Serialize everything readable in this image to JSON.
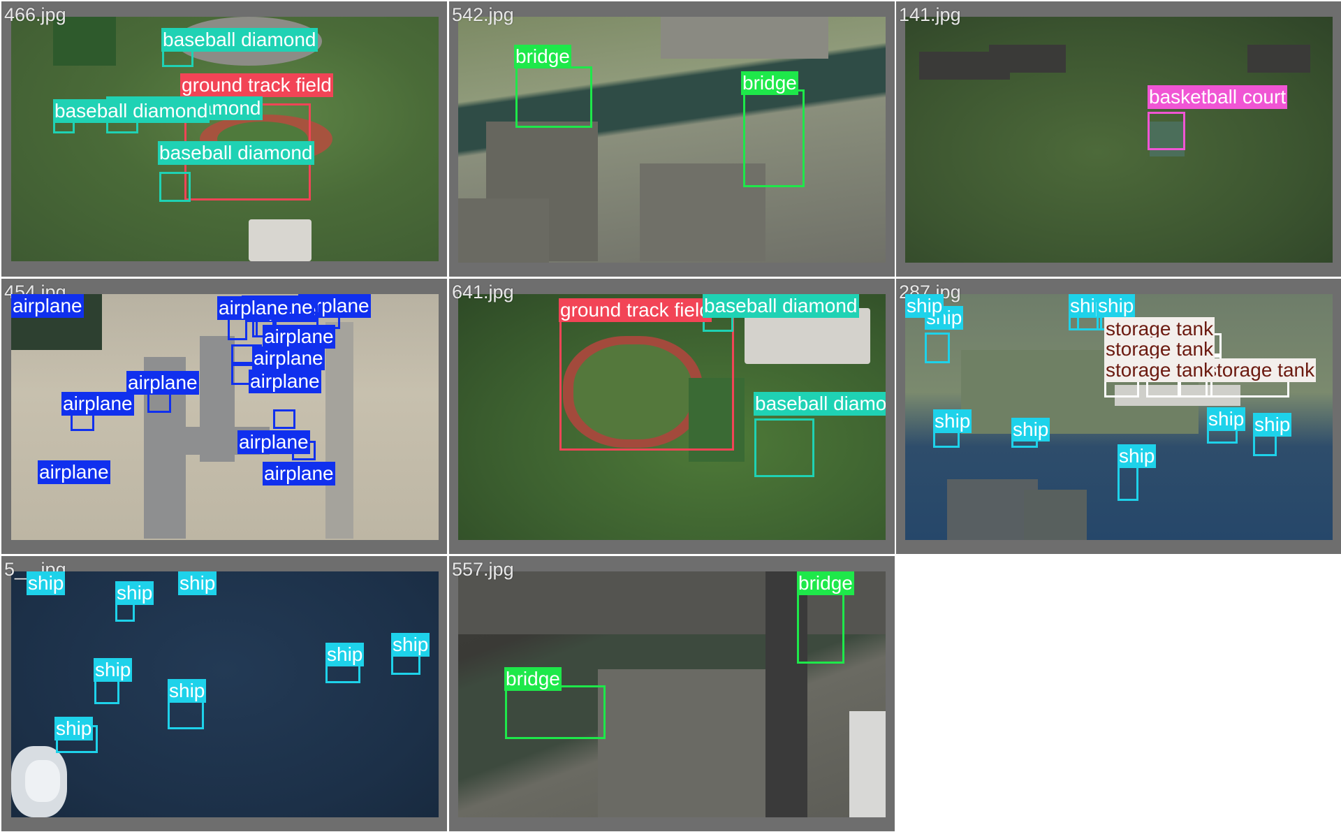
{
  "colors": {
    "baseball_diamond": "#1fd2b4",
    "ground_track_field": "#f24456",
    "bridge": "#1ee84a",
    "basketball_court": "#f055d4",
    "airplane": "#1030ee",
    "ship": "#1ed2ea",
    "storage_tank": "#f3efec",
    "storage_tank_text": "#6b1a10"
  },
  "tiles": [
    {
      "file": "466.jpg",
      "labels": [
        {
          "text": "baseball diamond",
          "cls": "baseball_diamond"
        },
        {
          "text": "ground track field",
          "cls": "ground_track_field"
        },
        {
          "text": "baseball diamond",
          "cls": "baseball_diamond"
        },
        {
          "text": "baseball diamond",
          "cls": "baseball_diamond"
        },
        {
          "text": "baseball diamond",
          "cls": "baseball_diamond"
        }
      ]
    },
    {
      "file": "542.jpg",
      "labels": [
        {
          "text": "bridge",
          "cls": "bridge"
        },
        {
          "text": "bridge",
          "cls": "bridge"
        }
      ]
    },
    {
      "file": "141.jpg",
      "labels": [
        {
          "text": "basketball court",
          "cls": "basketball_court"
        }
      ]
    },
    {
      "file": "454.jpg",
      "labels": [
        {
          "text": "airplane",
          "cls": "airplane"
        },
        {
          "text": "airplane",
          "cls": "airplane"
        },
        {
          "text": "airplane",
          "cls": "airplane"
        },
        {
          "text": "airplane",
          "cls": "airplane"
        },
        {
          "text": "airplane",
          "cls": "airplane"
        },
        {
          "text": "airplane",
          "cls": "airplane"
        },
        {
          "text": "airplane",
          "cls": "airplane"
        },
        {
          "text": "airplane",
          "cls": "airplane"
        },
        {
          "text": "airplane",
          "cls": "airplane"
        },
        {
          "text": "airplane",
          "cls": "airplane"
        },
        {
          "text": "airplane",
          "cls": "airplane"
        },
        {
          "text": "airplane",
          "cls": "airplane"
        },
        {
          "text": "airplane",
          "cls": "airplane"
        }
      ]
    },
    {
      "file": "641.jpg",
      "labels": [
        {
          "text": "ground track field",
          "cls": "ground_track_field"
        },
        {
          "text": "baseball diamond",
          "cls": "baseball_diamond"
        },
        {
          "text": "baseball diamond",
          "cls": "baseball_diamond"
        }
      ]
    },
    {
      "file": "287.jpg",
      "labels": [
        {
          "text": "ship",
          "cls": "ship"
        },
        {
          "text": "ship",
          "cls": "ship"
        },
        {
          "text": "ship",
          "cls": "ship"
        },
        {
          "text": "ship",
          "cls": "ship"
        },
        {
          "text": "storage tank",
          "cls": "storage_tank"
        },
        {
          "text": "storage tank",
          "cls": "storage_tank"
        },
        {
          "text": "storage tank",
          "cls": "storage_tank"
        },
        {
          "text": "storage tank",
          "cls": "storage_tank"
        },
        {
          "text": "storage tank",
          "cls": "storage_tank"
        },
        {
          "text": "storage tank",
          "cls": "storage_tank"
        },
        {
          "text": "storage tank",
          "cls": "storage_tank"
        },
        {
          "text": "ship",
          "cls": "ship"
        },
        {
          "text": "ship",
          "cls": "ship"
        },
        {
          "text": "ship",
          "cls": "ship"
        },
        {
          "text": "ship",
          "cls": "ship"
        },
        {
          "text": "ship",
          "cls": "ship"
        }
      ]
    },
    {
      "file": "5__.jpg",
      "labels": [
        {
          "text": "ship",
          "cls": "ship"
        },
        {
          "text": "ship",
          "cls": "ship"
        },
        {
          "text": "ship",
          "cls": "ship"
        },
        {
          "text": "ship",
          "cls": "ship"
        },
        {
          "text": "ship",
          "cls": "ship"
        },
        {
          "text": "ship",
          "cls": "ship"
        },
        {
          "text": "ship",
          "cls": "ship"
        },
        {
          "text": "ship",
          "cls": "ship"
        }
      ]
    },
    {
      "file": "557.jpg",
      "labels": [
        {
          "text": "bridge",
          "cls": "bridge"
        },
        {
          "text": "bridge",
          "cls": "bridge"
        }
      ]
    }
  ]
}
